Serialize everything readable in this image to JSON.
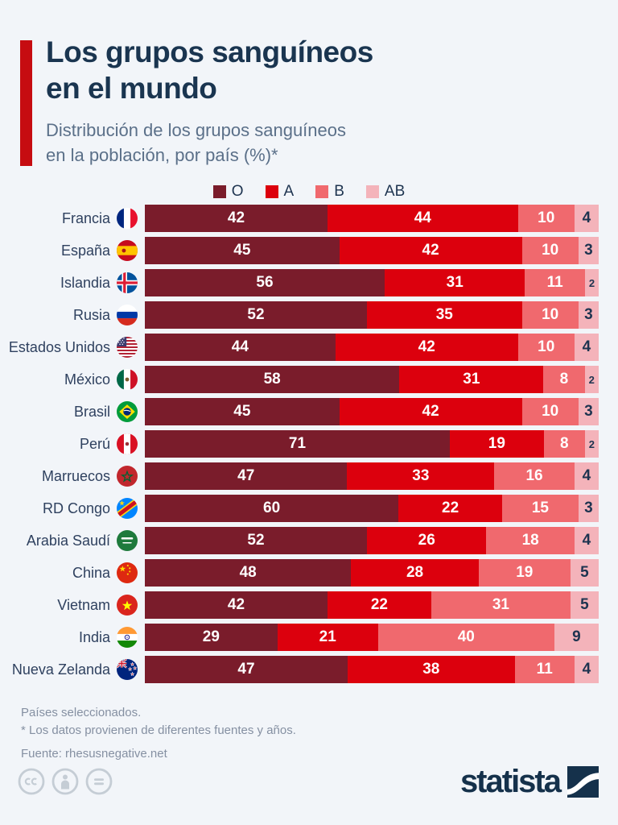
{
  "header": {
    "title_line1": "Los grupos sanguíneos",
    "title_line2": "en el mundo",
    "subtitle_line1": "Distribución de los grupos sanguíneos",
    "subtitle_line2": "en la población, por país (%)*"
  },
  "colors": {
    "background": "#f2f5f9",
    "accent_red": "#c60c11",
    "title_navy": "#1a3550",
    "subtitle_gray_blue": "#5b7089",
    "label_navy": "#2f415f",
    "footnote_gray": "#8590a2",
    "ab_value_text": "#1e3450"
  },
  "chart_data": {
    "type": "bar",
    "orientation": "horizontal",
    "stacked": true,
    "unit": "%",
    "xlim": [
      0,
      100
    ],
    "legend_position": "top-center",
    "grid": false,
    "groups": [
      {
        "key": "O",
        "color": "#7a1c2b"
      },
      {
        "key": "A",
        "color": "#dc000d"
      },
      {
        "key": "B",
        "color": "#f0696e"
      },
      {
        "key": "AB",
        "color": "#f4b3ba"
      }
    ],
    "categories": [
      "Francia",
      "España",
      "Islandia",
      "Rusia",
      "Estados Unidos",
      "México",
      "Brasil",
      "Perú",
      "Marruecos",
      "RD Congo",
      "Arabia Saudí",
      "China",
      "Vietnam",
      "India",
      "Nueva Zelanda"
    ],
    "flags": [
      "fr",
      "es",
      "is",
      "ru",
      "us",
      "mx",
      "br",
      "pe",
      "ma",
      "cd",
      "sa",
      "cn",
      "vn",
      "in",
      "nz"
    ],
    "series": [
      {
        "name": "O",
        "values": [
          42,
          45,
          56,
          52,
          44,
          58,
          45,
          71,
          47,
          60,
          52,
          48,
          42,
          29,
          47
        ]
      },
      {
        "name": "A",
        "values": [
          44,
          42,
          31,
          35,
          42,
          31,
          42,
          19,
          33,
          22,
          26,
          28,
          22,
          21,
          38
        ]
      },
      {
        "name": "B",
        "values": [
          10,
          10,
          11,
          10,
          10,
          8,
          10,
          8,
          16,
          15,
          18,
          19,
          31,
          40,
          11
        ]
      },
      {
        "name": "AB",
        "values": [
          4,
          3,
          2,
          3,
          4,
          2,
          3,
          2,
          4,
          3,
          4,
          5,
          5,
          9,
          4
        ]
      }
    ]
  },
  "footer": {
    "note1": "Países seleccionados.",
    "note2": "* Los datos provienen de diferentes fuentes y años.",
    "source": "Fuente: rhesusnegative.net"
  },
  "branding": {
    "logo_text": "statista",
    "license_icons": [
      "cc-icon",
      "attribution-person-icon",
      "no-derivatives-equals-icon"
    ]
  }
}
